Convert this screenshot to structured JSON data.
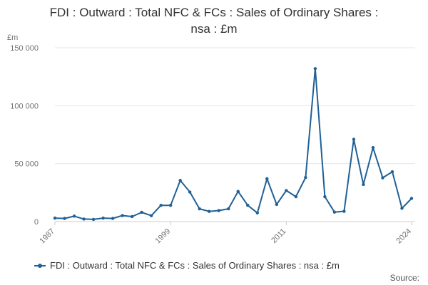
{
  "title_line1": "FDI : Outward : Total NFC & FCs : Sales of Ordinary Shares :",
  "title_line2": "nsa : £m",
  "source_label": "Source:",
  "colors": {
    "series": "#206095",
    "grid": "#e6e6e6",
    "axis": "#cccccc"
  },
  "chart_data": {
    "type": "line",
    "title": "FDI : Outward : Total NFC & FCs : Sales of Ordinary Shares : nsa : £m",
    "ylabel": "£m",
    "xlabel": "",
    "ylim": [
      0,
      150000
    ],
    "xlim": [
      1987,
      2024
    ],
    "y_ticks": [
      0,
      50000,
      100000,
      150000
    ],
    "y_tick_labels": [
      "0",
      "50 000",
      "100 000",
      "150 000"
    ],
    "x_ticks": [
      1987,
      1999,
      2011,
      2024
    ],
    "x_tick_labels": [
      "1987",
      "1999",
      "2011",
      "2024"
    ],
    "grid": "horizontal",
    "legend_position": "bottom",
    "series": [
      {
        "name": "FDI : Outward : Total NFC & FCs : Sales of Ordinary Shares : nsa : £m",
        "x": [
          1987,
          1988,
          1989,
          1990,
          1991,
          1992,
          1993,
          1994,
          1995,
          1996,
          1997,
          1998,
          1999,
          2000,
          2001,
          2002,
          2003,
          2004,
          2005,
          2006,
          2007,
          2008,
          2009,
          2010,
          2011,
          2012,
          2013,
          2014,
          2015,
          2016,
          2017,
          2018,
          2019,
          2020,
          2021,
          2022,
          2023,
          2024
        ],
        "values": [
          3000,
          2700,
          4700,
          2200,
          1900,
          3000,
          2700,
          5200,
          4300,
          8000,
          5100,
          14000,
          14000,
          35500,
          25500,
          11000,
          8800,
          9500,
          11000,
          26000,
          14000,
          7500,
          37000,
          14800,
          26800,
          21500,
          38000,
          132000,
          21500,
          8200,
          8900,
          71000,
          32000,
          63800,
          37800,
          43000,
          11500,
          20000
        ]
      }
    ]
  }
}
